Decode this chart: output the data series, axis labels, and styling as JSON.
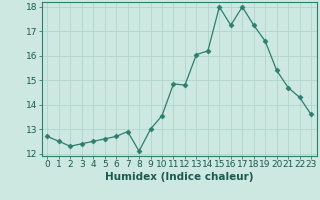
{
  "x": [
    0,
    1,
    2,
    3,
    4,
    5,
    6,
    7,
    8,
    9,
    10,
    11,
    12,
    13,
    14,
    15,
    16,
    17,
    18,
    19,
    20,
    21,
    22,
    23
  ],
  "y": [
    12.7,
    12.5,
    12.3,
    12.4,
    12.5,
    12.6,
    12.7,
    12.9,
    12.1,
    13.0,
    13.55,
    14.85,
    14.8,
    16.05,
    16.2,
    18.0,
    17.25,
    18.0,
    17.25,
    16.6,
    15.4,
    14.7,
    14.3,
    13.6
  ],
  "line_color": "#2e7d6e",
  "marker": "D",
  "marker_size": 2.5,
  "bg_color": "#cce8e0",
  "grid_color": "#b0d4cc",
  "xlabel": "Humidex (Indice chaleur)",
  "ylabel": "",
  "ylim": [
    11.9,
    18.2
  ],
  "xlim": [
    -0.5,
    23.5
  ],
  "yticks": [
    12,
    13,
    14,
    15,
    16,
    17,
    18
  ],
  "xticks": [
    0,
    1,
    2,
    3,
    4,
    5,
    6,
    7,
    8,
    9,
    10,
    11,
    12,
    13,
    14,
    15,
    16,
    17,
    18,
    19,
    20,
    21,
    22,
    23
  ],
  "tick_label_fontsize": 6.5,
  "xlabel_fontsize": 7.5
}
